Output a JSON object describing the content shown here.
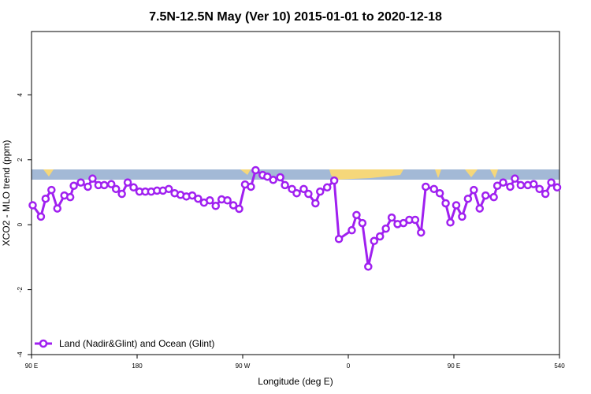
{
  "chart_data": {
    "type": "line",
    "title": "7.5N-12.5N May (Ver 10)   2015-01-01 to 2020-12-18",
    "x_label": "Longitude (deg E)",
    "y_label": "XCO2 - MLO trend (ppm)",
    "xlim": [
      90,
      540
    ],
    "xticks": [
      {
        "value": 90,
        "label": "90 E"
      },
      180,
      {
        "value": 270,
        "label": "90 W"
      },
      {
        "value": 360,
        "label": "0"
      },
      {
        "value": 450,
        "label": "90 E"
      },
      540
    ],
    "ylim": [
      -4,
      5.95
    ],
    "yticks": [
      -4,
      -2,
      0,
      2,
      4
    ],
    "legend": "bottom-left",
    "x": [
      91,
      98,
      102,
      107,
      112,
      118,
      123,
      126,
      132,
      138,
      142,
      147,
      152,
      158,
      162,
      167,
      172,
      177,
      182,
      187,
      192,
      197,
      202,
      207,
      212,
      217,
      222,
      227,
      232,
      237,
      242,
      247,
      252,
      257,
      262,
      267,
      272,
      277,
      281,
      287,
      291,
      296,
      302,
      306,
      312,
      316,
      322,
      326,
      332,
      336,
      342,
      348,
      352,
      363,
      367,
      372,
      377,
      382,
      387,
      392,
      397,
      402,
      407,
      412,
      417,
      422,
      426,
      433,
      438,
      443,
      447,
      452,
      457,
      462,
      467,
      472,
      477,
      484,
      487,
      492,
      498,
      502,
      507,
      513,
      518,
      523,
      528,
      533,
      538
    ],
    "series": [
      {
        "name": "Land (Nadir&Glint) and Ocean (Glint)",
        "color": "#a020f0",
        "values": [
          0.6,
          0.25,
          0.8,
          1.07,
          0.5,
          0.9,
          0.85,
          1.2,
          1.3,
          1.17,
          1.42,
          1.22,
          1.22,
          1.25,
          1.1,
          0.95,
          1.3,
          1.15,
          1.02,
          1.02,
          1.02,
          1.05,
          1.05,
          1.1,
          0.97,
          0.92,
          0.87,
          0.9,
          0.8,
          0.68,
          0.75,
          0.58,
          0.78,
          0.75,
          0.6,
          0.49,
          1.24,
          1.17,
          1.68,
          1.53,
          1.48,
          1.38,
          1.46,
          1.22,
          1.1,
          0.97,
          1.1,
          0.95,
          0.66,
          1.02,
          1.15,
          1.36,
          -0.44,
          -0.17,
          0.3,
          0.05,
          -1.29,
          -0.5,
          -0.36,
          -0.12,
          0.22,
          0.02,
          0.05,
          0.15,
          0.15,
          -0.24,
          1.17,
          1.1,
          0.97,
          0.66,
          0.07,
          0.6,
          0.25,
          0.8,
          1.07,
          0.5,
          0.9,
          0.85,
          1.2,
          1.3,
          1.17,
          1.42,
          1.22,
          1.22,
          1.25,
          1.1,
          0.95,
          1.3,
          1.15
        ]
      }
    ]
  }
}
